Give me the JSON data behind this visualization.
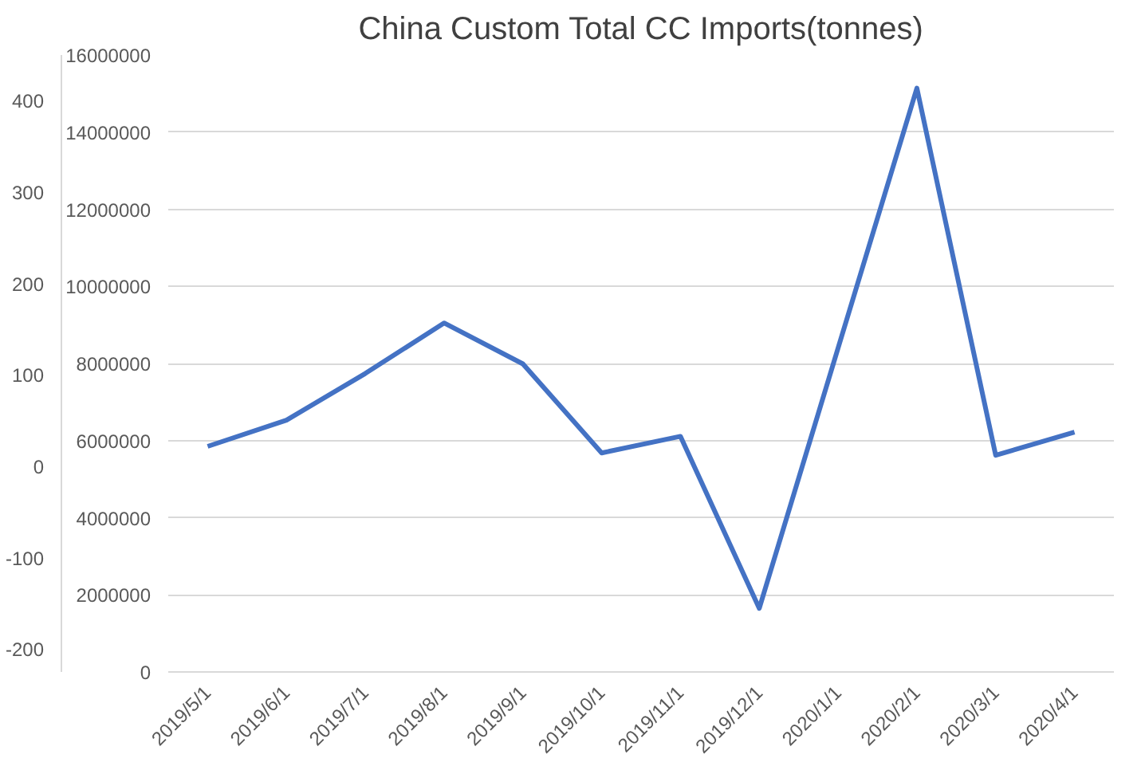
{
  "chart_data": {
    "type": "line",
    "title": "China Custom Total CC Imports(tonnes)",
    "categories": [
      "2019/5/1",
      "2019/6/1",
      "2019/7/1",
      "2019/8/1",
      "2019/9/1",
      "2019/10/1",
      "2019/11/1",
      "2019/12/1",
      "2020/1/1",
      "2020/2/1",
      "2020/3/1",
      "2020/4/1"
    ],
    "series": [
      {
        "color": "#4472c4",
        "values": [
          5850000,
          6530000,
          7740000,
          9050000,
          7990000,
          5680000,
          6110000,
          1650000,
          8400000,
          15140000,
          5620000,
          6220000
        ]
      }
    ],
    "ylim": [
      0,
      16000000
    ],
    "yticks": [
      0,
      2000000,
      4000000,
      6000000,
      8000000,
      10000000,
      12000000,
      14000000,
      16000000
    ],
    "y2lim": [
      -225,
      450
    ],
    "y2ticks": [
      -200,
      -100,
      0,
      100,
      200,
      300,
      400
    ],
    "grid": "y",
    "marker": "none",
    "line_style": "solid"
  }
}
